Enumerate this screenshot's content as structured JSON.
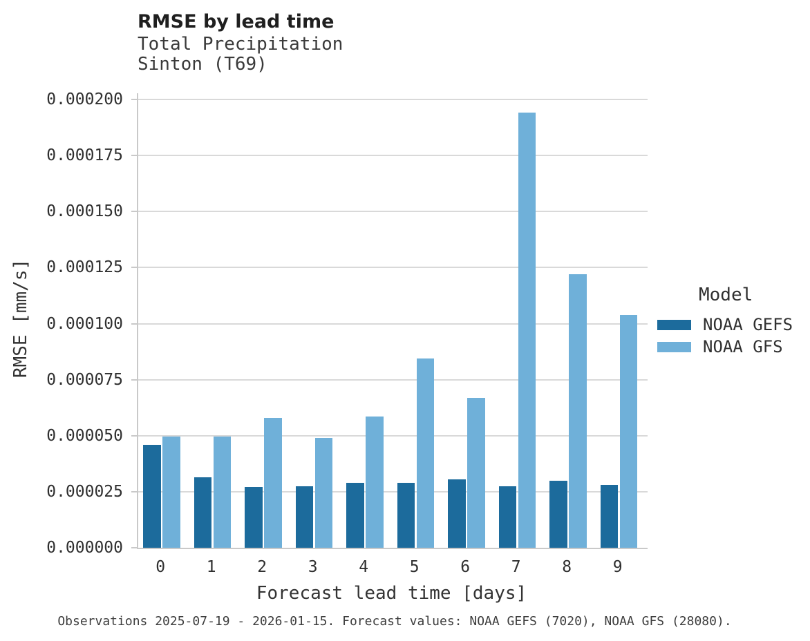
{
  "chart_data": {
    "type": "bar",
    "title": "RMSE by lead time",
    "subtitle_lines": [
      "Total Precipitation",
      "Sinton (T69)"
    ],
    "xlabel": "Forecast lead time [days]",
    "ylabel": "RMSE [mm/s]",
    "legend_title": "Model",
    "legend_position": "right",
    "grid": true,
    "ylim": [
      0,
      0.0002
    ],
    "yticks": [
      {
        "value": 0.0,
        "label": "0.000000"
      },
      {
        "value": 2.5e-05,
        "label": "0.000025"
      },
      {
        "value": 5e-05,
        "label": "0.000050"
      },
      {
        "value": 7.5e-05,
        "label": "0.000075"
      },
      {
        "value": 0.0001,
        "label": "0.000100"
      },
      {
        "value": 0.000125,
        "label": "0.000125"
      },
      {
        "value": 0.00015,
        "label": "0.000150"
      },
      {
        "value": 0.000175,
        "label": "0.000175"
      },
      {
        "value": 0.0002,
        "label": "0.000200"
      }
    ],
    "categories": [
      "0",
      "1",
      "2",
      "3",
      "4",
      "5",
      "6",
      "7",
      "8",
      "9"
    ],
    "series": [
      {
        "name": "NOAA GEFS",
        "color": "#1c6b9c",
        "values": [
          4.6e-05,
          3.15e-05,
          2.7e-05,
          2.75e-05,
          2.9e-05,
          2.9e-05,
          3.05e-05,
          2.75e-05,
          3e-05,
          2.8e-05
        ]
      },
      {
        "name": "NOAA GFS",
        "color": "#6fb0d9",
        "values": [
          4.95e-05,
          4.95e-05,
          5.8e-05,
          4.9e-05,
          5.85e-05,
          8.45e-05,
          6.7e-05,
          0.000194,
          0.000122,
          0.000104
        ]
      }
    ]
  },
  "colors": {
    "grid": "#d9d9d9",
    "spine": "#c9c9c9",
    "gefs_bar": "#1c6b9c",
    "gfs_bar": "#6fb0d9"
  },
  "caption": "Observations 2025-07-19 - 2026-01-15. Forecast values: NOAA GEFS (7020), NOAA GFS (28080)."
}
